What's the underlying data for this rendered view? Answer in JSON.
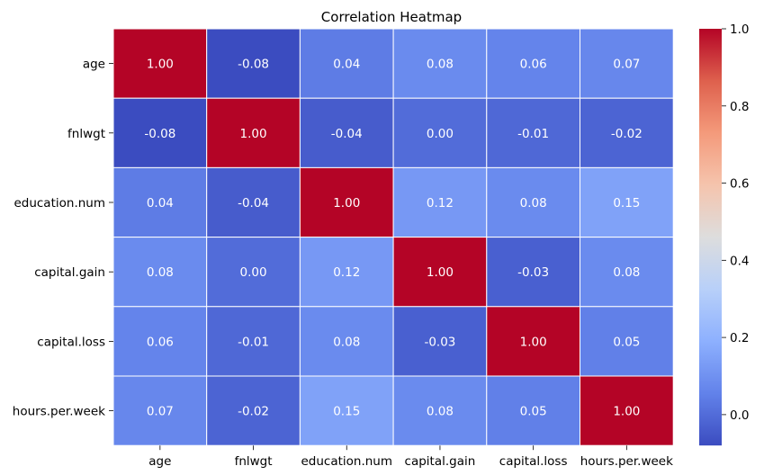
{
  "chart_data": {
    "type": "heatmap",
    "title": "Correlation Heatmap",
    "xlabel": "",
    "ylabel": "",
    "x_labels": [
      "age",
      "fnlwgt",
      "education.num",
      "capital.gain",
      "capital.loss",
      "hours.per.week"
    ],
    "y_labels": [
      "age",
      "fnlwgt",
      "education.num",
      "capital.gain",
      "capital.loss",
      "hours.per.week"
    ],
    "values": [
      [
        1.0,
        -0.08,
        0.04,
        0.08,
        0.06,
        0.07
      ],
      [
        -0.08,
        1.0,
        -0.04,
        0.0,
        -0.01,
        -0.02
      ],
      [
        0.04,
        -0.04,
        1.0,
        0.12,
        0.08,
        0.15
      ],
      [
        0.08,
        0.0,
        0.12,
        1.0,
        -0.03,
        0.08
      ],
      [
        0.06,
        -0.01,
        0.08,
        -0.03,
        1.0,
        0.05
      ],
      [
        0.07,
        -0.02,
        0.15,
        0.08,
        0.05,
        1.0
      ]
    ],
    "value_format": "2 decimals",
    "colormap": "coolwarm",
    "color_range": [
      -0.08,
      1.0
    ],
    "colorbar_ticks": [
      "0.0",
      "0.2",
      "0.4",
      "0.6",
      "0.8",
      "1.0"
    ],
    "grid": false
  }
}
